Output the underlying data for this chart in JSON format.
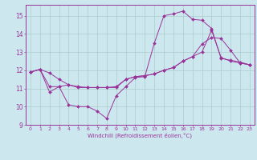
{
  "xlabel": "Windchill (Refroidissement éolien,°C)",
  "xlim": [
    -0.5,
    23.5
  ],
  "ylim": [
    9,
    15.6
  ],
  "yticks": [
    9,
    10,
    11,
    12,
    13,
    14,
    15
  ],
  "xticks": [
    0,
    1,
    2,
    3,
    4,
    5,
    6,
    7,
    8,
    9,
    10,
    11,
    12,
    13,
    14,
    15,
    16,
    17,
    18,
    19,
    20,
    21,
    22,
    23
  ],
  "color": "#993399",
  "bg_color": "#cce8ee",
  "grid_color": "#aacccc",
  "line1_x": [
    0,
    1,
    2,
    3,
    4,
    5,
    6,
    7,
    8,
    9,
    10,
    11,
    12,
    13,
    14,
    15,
    16,
    17,
    18,
    19,
    20,
    21,
    22,
    23
  ],
  "line1_y": [
    11.9,
    12.05,
    10.8,
    11.1,
    10.1,
    10.0,
    10.0,
    9.75,
    9.35,
    10.6,
    11.1,
    11.6,
    11.65,
    13.5,
    15.0,
    15.1,
    15.25,
    14.8,
    14.75,
    14.3,
    12.65,
    12.55,
    12.45,
    12.3
  ],
  "line2_x": [
    0,
    1,
    2,
    3,
    4,
    5,
    6,
    7,
    8,
    9,
    10,
    11,
    12,
    13,
    14,
    15,
    16,
    17,
    18,
    19,
    20,
    21,
    22,
    23
  ],
  "line2_y": [
    11.9,
    12.05,
    11.85,
    11.5,
    11.2,
    11.1,
    11.05,
    11.05,
    11.05,
    11.05,
    11.5,
    11.65,
    11.7,
    11.8,
    12.0,
    12.15,
    12.5,
    12.75,
    13.45,
    13.8,
    13.75,
    13.1,
    12.4,
    12.3
  ],
  "line3_x": [
    0,
    1,
    2,
    3,
    4,
    5,
    6,
    7,
    8,
    9,
    10,
    11,
    12,
    13,
    14,
    15,
    16,
    17,
    18,
    19,
    20,
    21,
    22,
    23
  ],
  "line3_y": [
    11.9,
    12.05,
    11.1,
    11.1,
    11.2,
    11.05,
    11.05,
    11.05,
    11.05,
    11.1,
    11.5,
    11.65,
    11.7,
    11.8,
    12.0,
    12.15,
    12.5,
    12.75,
    13.0,
    14.2,
    12.7,
    12.5,
    12.4,
    12.3
  ]
}
